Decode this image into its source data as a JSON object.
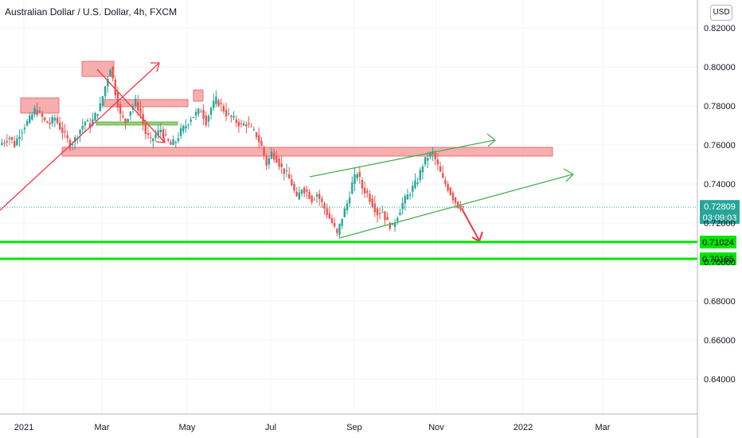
{
  "window": {
    "title": "Australian Dollar / U.S. Dollar, 4h, FXCM",
    "currency": "USD"
  },
  "chart_data": {
    "type": "candlestick",
    "title": "Australian Dollar / U.S. Dollar, 4h, FXCM",
    "xlabel": "",
    "ylabel": "",
    "x_ticks": [
      "2021",
      "Mar",
      "May",
      "Jul",
      "Sep",
      "Nov",
      "2022",
      "Mar"
    ],
    "y_ticks": [
      0.82,
      0.8,
      0.78,
      0.76,
      0.74,
      0.72,
      0.7,
      0.68,
      0.66,
      0.64
    ],
    "y_tick_labels": [
      "0.82000",
      "0.80000",
      "0.78000",
      "0.76000",
      "0.74000",
      "0.72000",
      "0.70000",
      "0.68000",
      "0.66000",
      "0.64000"
    ],
    "ylim": [
      0.623,
      0.833
    ],
    "grid": true,
    "series": [
      {
        "values": [
          0.762,
          0.764,
          0.76,
          0.766,
          0.77,
          0.773,
          0.778,
          0.776,
          0.772,
          0.771,
          0.774,
          0.769,
          0.765,
          0.76,
          0.763,
          0.768,
          0.772,
          0.77,
          0.775,
          0.78,
          0.79,
          0.8,
          0.787,
          0.775,
          0.772,
          0.778,
          0.782,
          0.776,
          0.766,
          0.762,
          0.765,
          0.768,
          0.763,
          0.76,
          0.762,
          0.767,
          0.77,
          0.774,
          0.776,
          0.778,
          0.772,
          0.779,
          0.783,
          0.78,
          0.776,
          0.774,
          0.772,
          0.77,
          0.771,
          0.768,
          0.765,
          0.759,
          0.75,
          0.756,
          0.753,
          0.748,
          0.745,
          0.74,
          0.732,
          0.738,
          0.736,
          0.732,
          0.735,
          0.73,
          0.725,
          0.72,
          0.714,
          0.723,
          0.73,
          0.74,
          0.746,
          0.738,
          0.735,
          0.73,
          0.725,
          0.726,
          0.72,
          0.718,
          0.724,
          0.73,
          0.734,
          0.738,
          0.742,
          0.75,
          0.754,
          0.756,
          0.749,
          0.742,
          0.738,
          0.733,
          0.729,
          0.7281
        ]
      }
    ],
    "levels": [
      {
        "label": "0.71024",
        "value": 0.71024,
        "color": "#00e600"
      },
      {
        "label": "0.70165",
        "value": 0.70165,
        "color": "#00e600"
      }
    ],
    "current_price": {
      "label": "0.72809",
      "value": 0.72809,
      "countdown": "03:09:03",
      "color": "#26a69a"
    },
    "colors": {
      "up": "#26a69a",
      "down": "#ef5350",
      "zone": "#f7a0a0",
      "channel": "#4caf50",
      "arrow": "#f23645"
    }
  }
}
